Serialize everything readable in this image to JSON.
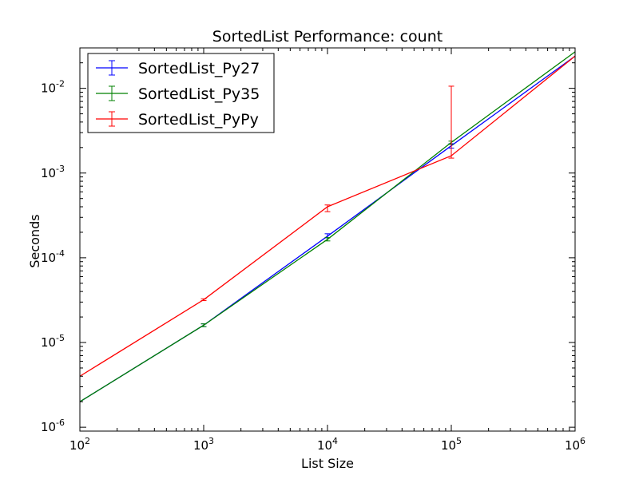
{
  "chart_data": {
    "type": "line",
    "title": "SortedList Performance: count",
    "xlabel": "List Size",
    "ylabel": "Seconds",
    "x_scale": "log",
    "y_scale": "log",
    "xlim": [
      100,
      1000000
    ],
    "ylim": [
      9e-07,
      0.03
    ],
    "grid": false,
    "legend_position": "top-left",
    "x_ticks": [
      {
        "value": 100,
        "base": "10",
        "exp": "2"
      },
      {
        "value": 1000,
        "base": "10",
        "exp": "3"
      },
      {
        "value": 10000,
        "base": "10",
        "exp": "4"
      },
      {
        "value": 100000,
        "base": "10",
        "exp": "5"
      },
      {
        "value": 1000000,
        "base": "10",
        "exp": "6"
      }
    ],
    "y_ticks": [
      {
        "value": 1e-06,
        "base": "10",
        "exp": "-6"
      },
      {
        "value": 1e-05,
        "base": "10",
        "exp": "-5"
      },
      {
        "value": 0.0001,
        "base": "10",
        "exp": "-4"
      },
      {
        "value": 0.001,
        "base": "10",
        "exp": "-3"
      },
      {
        "value": 0.01,
        "base": "10",
        "exp": "-2"
      }
    ],
    "x": [
      100,
      1000,
      10000,
      100000,
      1000000
    ],
    "series": [
      {
        "name": "SortedList_Py27",
        "color": "#0000ff",
        "values": [
          2e-06,
          1.6e-05,
          0.00018,
          0.0021,
          0.024
        ],
        "err_low": [
          2e-06,
          1.54e-05,
          0.000172,
          0.00197,
          0.024
        ],
        "err_high": [
          2e-06,
          1.66e-05,
          0.000192,
          0.00222,
          0.024
        ]
      },
      {
        "name": "SortedList_Py35",
        "color": "#008000",
        "values": [
          2e-06,
          1.6e-05,
          0.000165,
          0.0023,
          0.027
        ],
        "err_low": [
          2e-06,
          1.54e-05,
          0.000158,
          0.00218,
          0.027
        ],
        "err_high": [
          2e-06,
          1.66e-05,
          0.000173,
          0.00238,
          0.027
        ]
      },
      {
        "name": "SortedList_PyPy",
        "color": "#ff0000",
        "values": [
          4e-06,
          3.2e-05,
          0.0004,
          0.0016,
          0.024
        ],
        "err_low": [
          4e-06,
          3.12e-05,
          0.00035,
          0.0015,
          0.024
        ],
        "err_high": [
          4e-06,
          3.28e-05,
          0.00042,
          0.0106,
          0.024
        ]
      }
    ]
  }
}
